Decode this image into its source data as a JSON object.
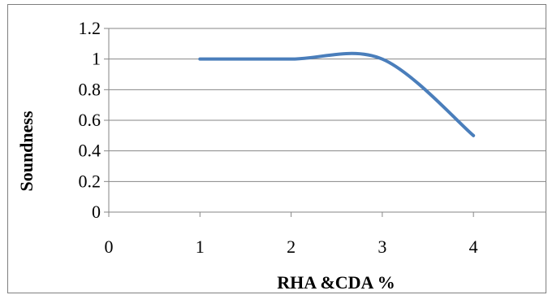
{
  "chart_data": {
    "type": "line",
    "title": "",
    "xlabel": "RHA &CDA %",
    "ylabel": "Soundness",
    "xlim": [
      0,
      4.8
    ],
    "ylim": [
      0,
      1.2
    ],
    "x_ticks": [
      0,
      1,
      2,
      3,
      4
    ],
    "y_ticks": [
      0,
      0.2,
      0.4,
      0.6,
      0.8,
      1,
      1.2
    ],
    "y_tick_labels": [
      "0",
      "0.2",
      "0.4",
      "0.6",
      "0.8",
      "1",
      "1.2"
    ],
    "grid": "horizontal",
    "legend": "none",
    "smooth": true,
    "series": [
      {
        "x": [
          1,
          2,
          3,
          4
        ],
        "values": [
          1,
          1,
          1,
          0.5
        ],
        "color": "#4a7ebb"
      }
    ]
  }
}
